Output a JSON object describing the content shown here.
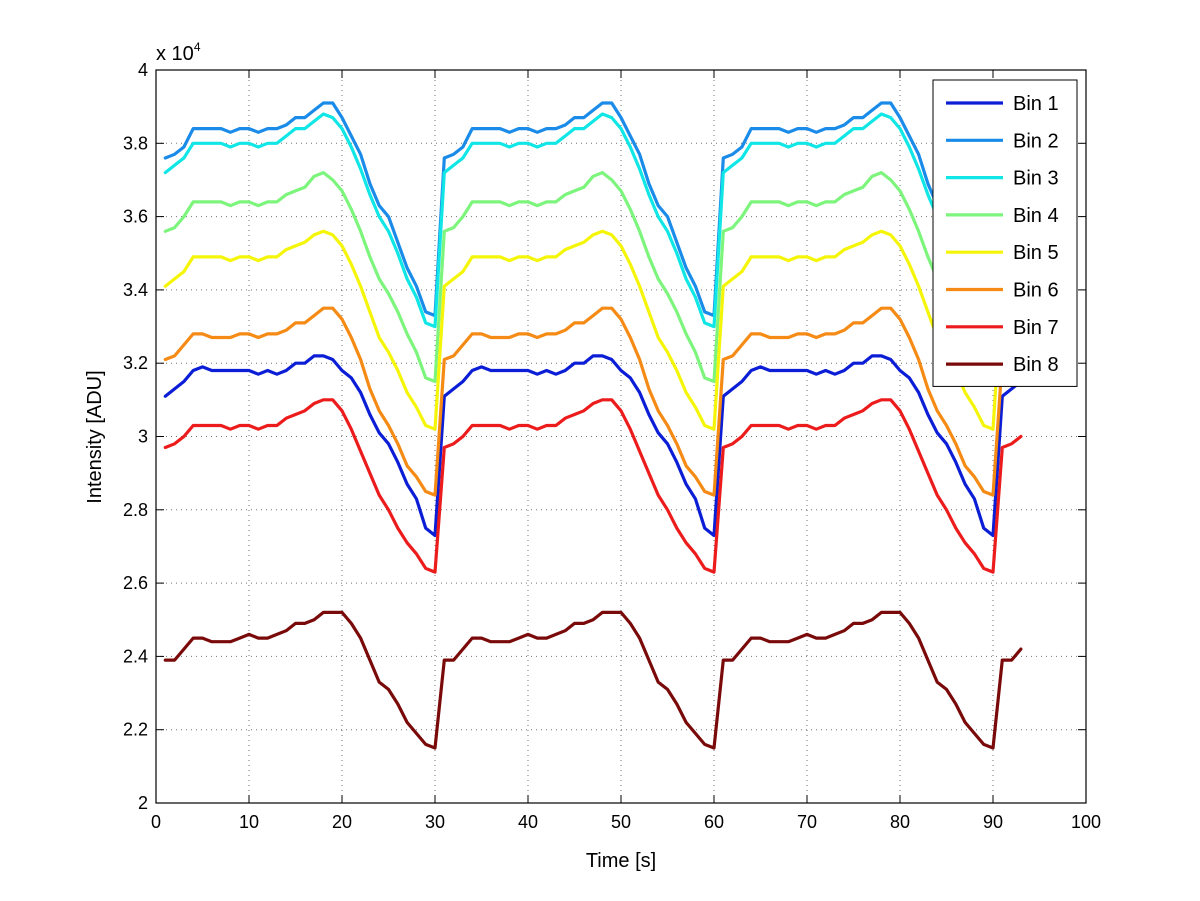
{
  "chart_data": {
    "type": "line",
    "title": "",
    "xlabel": "Time [s]",
    "ylabel": "Intensity [ADU]",
    "y_multiplier_label": "x 10",
    "y_multiplier_exp": "4",
    "xlim": [
      0,
      100
    ],
    "ylim": [
      2,
      4
    ],
    "xticks": [
      0,
      10,
      20,
      30,
      40,
      50,
      60,
      70,
      80,
      90,
      100
    ],
    "yticks": [
      2,
      2.2,
      2.4,
      2.6,
      2.8,
      3,
      3.2,
      3.4,
      3.6,
      3.8,
      4
    ],
    "xtick_labels": [
      "0",
      "10",
      "20",
      "30",
      "40",
      "50",
      "60",
      "70",
      "80",
      "90",
      "100"
    ],
    "ytick_labels": [
      "2",
      "2.2",
      "2.4",
      "2.6",
      "2.8",
      "3",
      "3.2",
      "3.4",
      "3.6",
      "3.8",
      "4"
    ],
    "grid": true,
    "legend_position": "top-right",
    "cycle_period": 30,
    "series": [
      {
        "name": "Bin 1",
        "color": "#0b1ed6",
        "x_end": 93,
        "cycle": [
          [
            1,
            3.11
          ],
          [
            2,
            3.13
          ],
          [
            3,
            3.15
          ],
          [
            4,
            3.18
          ],
          [
            5,
            3.19
          ],
          [
            6,
            3.18
          ],
          [
            7,
            3.18
          ],
          [
            8,
            3.18
          ],
          [
            9,
            3.18
          ],
          [
            10,
            3.18
          ],
          [
            11,
            3.17
          ],
          [
            12,
            3.18
          ],
          [
            13,
            3.17
          ],
          [
            14,
            3.18
          ],
          [
            15,
            3.2
          ],
          [
            16,
            3.2
          ],
          [
            17,
            3.22
          ],
          [
            18,
            3.22
          ],
          [
            19,
            3.21
          ],
          [
            20,
            3.18
          ],
          [
            21,
            3.16
          ],
          [
            22,
            3.12
          ],
          [
            23,
            3.06
          ],
          [
            24,
            3.01
          ],
          [
            25,
            2.98
          ],
          [
            26,
            2.93
          ],
          [
            27,
            2.87
          ],
          [
            28,
            2.83
          ],
          [
            29,
            2.75
          ],
          [
            30,
            2.73
          ]
        ]
      },
      {
        "name": "Bin 2",
        "color": "#1a8be8",
        "x_end": 93,
        "cycle": [
          [
            1,
            3.76
          ],
          [
            2,
            3.77
          ],
          [
            3,
            3.79
          ],
          [
            4,
            3.84
          ],
          [
            5,
            3.84
          ],
          [
            6,
            3.84
          ],
          [
            7,
            3.84
          ],
          [
            8,
            3.83
          ],
          [
            9,
            3.84
          ],
          [
            10,
            3.84
          ],
          [
            11,
            3.83
          ],
          [
            12,
            3.84
          ],
          [
            13,
            3.84
          ],
          [
            14,
            3.85
          ],
          [
            15,
            3.87
          ],
          [
            16,
            3.87
          ],
          [
            17,
            3.89
          ],
          [
            18,
            3.91
          ],
          [
            19,
            3.91
          ],
          [
            20,
            3.87
          ],
          [
            21,
            3.82
          ],
          [
            22,
            3.77
          ],
          [
            23,
            3.69
          ],
          [
            24,
            3.63
          ],
          [
            25,
            3.6
          ],
          [
            26,
            3.53
          ],
          [
            27,
            3.46
          ],
          [
            28,
            3.41
          ],
          [
            29,
            3.34
          ],
          [
            30,
            3.33
          ]
        ]
      },
      {
        "name": "Bin 3",
        "color": "#10e6e6",
        "x_end": 93,
        "cycle": [
          [
            1,
            3.72
          ],
          [
            2,
            3.74
          ],
          [
            3,
            3.76
          ],
          [
            4,
            3.8
          ],
          [
            5,
            3.8
          ],
          [
            6,
            3.8
          ],
          [
            7,
            3.8
          ],
          [
            8,
            3.79
          ],
          [
            9,
            3.8
          ],
          [
            10,
            3.8
          ],
          [
            11,
            3.79
          ],
          [
            12,
            3.8
          ],
          [
            13,
            3.8
          ],
          [
            14,
            3.82
          ],
          [
            15,
            3.84
          ],
          [
            16,
            3.84
          ],
          [
            17,
            3.86
          ],
          [
            18,
            3.88
          ],
          [
            19,
            3.87
          ],
          [
            20,
            3.84
          ],
          [
            21,
            3.79
          ],
          [
            22,
            3.73
          ],
          [
            23,
            3.66
          ],
          [
            24,
            3.6
          ],
          [
            25,
            3.56
          ],
          [
            26,
            3.5
          ],
          [
            27,
            3.43
          ],
          [
            28,
            3.38
          ],
          [
            29,
            3.31
          ],
          [
            30,
            3.3
          ]
        ]
      },
      {
        "name": "Bin 4",
        "color": "#7df57d",
        "x_end": 93,
        "cycle": [
          [
            1,
            3.56
          ],
          [
            2,
            3.57
          ],
          [
            3,
            3.6
          ],
          [
            4,
            3.64
          ],
          [
            5,
            3.64
          ],
          [
            6,
            3.64
          ],
          [
            7,
            3.64
          ],
          [
            8,
            3.63
          ],
          [
            9,
            3.64
          ],
          [
            10,
            3.64
          ],
          [
            11,
            3.63
          ],
          [
            12,
            3.64
          ],
          [
            13,
            3.64
          ],
          [
            14,
            3.66
          ],
          [
            15,
            3.67
          ],
          [
            16,
            3.68
          ],
          [
            17,
            3.71
          ],
          [
            18,
            3.72
          ],
          [
            19,
            3.7
          ],
          [
            20,
            3.67
          ],
          [
            21,
            3.62
          ],
          [
            22,
            3.56
          ],
          [
            23,
            3.49
          ],
          [
            24,
            3.43
          ],
          [
            25,
            3.39
          ],
          [
            26,
            3.34
          ],
          [
            27,
            3.28
          ],
          [
            28,
            3.23
          ],
          [
            29,
            3.16
          ],
          [
            30,
            3.15
          ]
        ]
      },
      {
        "name": "Bin 5",
        "color": "#f5f50a",
        "x_end": 93,
        "cycle": [
          [
            1,
            3.41
          ],
          [
            2,
            3.43
          ],
          [
            3,
            3.45
          ],
          [
            4,
            3.49
          ],
          [
            5,
            3.49
          ],
          [
            6,
            3.49
          ],
          [
            7,
            3.49
          ],
          [
            8,
            3.48
          ],
          [
            9,
            3.49
          ],
          [
            10,
            3.49
          ],
          [
            11,
            3.48
          ],
          [
            12,
            3.49
          ],
          [
            13,
            3.49
          ],
          [
            14,
            3.51
          ],
          [
            15,
            3.52
          ],
          [
            16,
            3.53
          ],
          [
            17,
            3.55
          ],
          [
            18,
            3.56
          ],
          [
            19,
            3.55
          ],
          [
            20,
            3.52
          ],
          [
            21,
            3.47
          ],
          [
            22,
            3.41
          ],
          [
            23,
            3.34
          ],
          [
            24,
            3.27
          ],
          [
            25,
            3.23
          ],
          [
            26,
            3.18
          ],
          [
            27,
            3.12
          ],
          [
            28,
            3.08
          ],
          [
            29,
            3.03
          ],
          [
            30,
            3.02
          ]
        ]
      },
      {
        "name": "Bin 6",
        "color": "#f58a14",
        "x_end": 93,
        "cycle": [
          [
            1,
            3.21
          ],
          [
            2,
            3.22
          ],
          [
            3,
            3.25
          ],
          [
            4,
            3.28
          ],
          [
            5,
            3.28
          ],
          [
            6,
            3.27
          ],
          [
            7,
            3.27
          ],
          [
            8,
            3.27
          ],
          [
            9,
            3.28
          ],
          [
            10,
            3.28
          ],
          [
            11,
            3.27
          ],
          [
            12,
            3.28
          ],
          [
            13,
            3.28
          ],
          [
            14,
            3.29
          ],
          [
            15,
            3.31
          ],
          [
            16,
            3.31
          ],
          [
            17,
            3.33
          ],
          [
            18,
            3.35
          ],
          [
            19,
            3.35
          ],
          [
            20,
            3.32
          ],
          [
            21,
            3.27
          ],
          [
            22,
            3.21
          ],
          [
            23,
            3.13
          ],
          [
            24,
            3.07
          ],
          [
            25,
            3.03
          ],
          [
            26,
            2.98
          ],
          [
            27,
            2.92
          ],
          [
            28,
            2.89
          ],
          [
            29,
            2.85
          ],
          [
            30,
            2.84
          ]
        ]
      },
      {
        "name": "Bin 7",
        "color": "#ec1c1c",
        "x_end": 93,
        "cycle": [
          [
            1,
            2.97
          ],
          [
            2,
            2.98
          ],
          [
            3,
            3.0
          ],
          [
            4,
            3.03
          ],
          [
            5,
            3.03
          ],
          [
            6,
            3.03
          ],
          [
            7,
            3.03
          ],
          [
            8,
            3.02
          ],
          [
            9,
            3.03
          ],
          [
            10,
            3.03
          ],
          [
            11,
            3.02
          ],
          [
            12,
            3.03
          ],
          [
            13,
            3.03
          ],
          [
            14,
            3.05
          ],
          [
            15,
            3.06
          ],
          [
            16,
            3.07
          ],
          [
            17,
            3.09
          ],
          [
            18,
            3.1
          ],
          [
            19,
            3.1
          ],
          [
            20,
            3.07
          ],
          [
            21,
            3.02
          ],
          [
            22,
            2.96
          ],
          [
            23,
            2.9
          ],
          [
            24,
            2.84
          ],
          [
            25,
            2.8
          ],
          [
            26,
            2.75
          ],
          [
            27,
            2.71
          ],
          [
            28,
            2.68
          ],
          [
            29,
            2.64
          ],
          [
            30,
            2.63
          ]
        ]
      },
      {
        "name": "Bin 8",
        "color": "#7a0a0a",
        "x_end": 93,
        "cycle": [
          [
            1,
            2.39
          ],
          [
            2,
            2.39
          ],
          [
            3,
            2.42
          ],
          [
            4,
            2.45
          ],
          [
            5,
            2.45
          ],
          [
            6,
            2.44
          ],
          [
            7,
            2.44
          ],
          [
            8,
            2.44
          ],
          [
            9,
            2.45
          ],
          [
            10,
            2.46
          ],
          [
            11,
            2.45
          ],
          [
            12,
            2.45
          ],
          [
            13,
            2.46
          ],
          [
            14,
            2.47
          ],
          [
            15,
            2.49
          ],
          [
            16,
            2.49
          ],
          [
            17,
            2.5
          ],
          [
            18,
            2.52
          ],
          [
            19,
            2.52
          ],
          [
            20,
            2.52
          ],
          [
            21,
            2.49
          ],
          [
            22,
            2.45
          ],
          [
            23,
            2.39
          ],
          [
            24,
            2.33
          ],
          [
            25,
            2.31
          ],
          [
            26,
            2.27
          ],
          [
            27,
            2.22
          ],
          [
            28,
            2.19
          ],
          [
            29,
            2.16
          ],
          [
            30,
            2.15
          ]
        ]
      }
    ]
  }
}
